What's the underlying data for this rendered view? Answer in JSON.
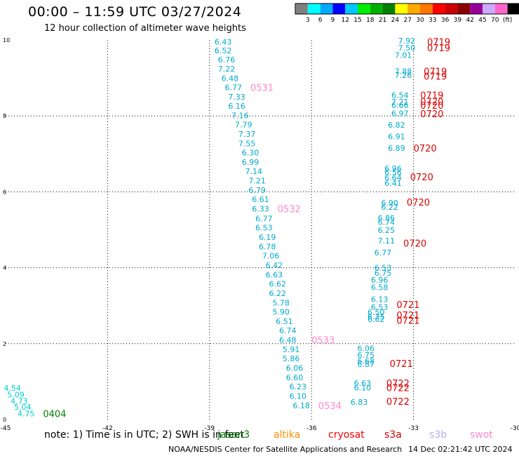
{
  "header": {
    "title": "00:00 – 11:59 UTC 03/27/2024",
    "subtitle": "12 hour collection of altimeter wave heights"
  },
  "colorbar": {
    "labels": [
      "3",
      "6",
      "9",
      "12",
      "15",
      "18",
      "21",
      "24",
      "27",
      "30",
      "33",
      "36",
      "39",
      "42",
      "45",
      "70",
      "(ft)"
    ],
    "colors": [
      "#808080",
      "#00ffff",
      "#00aaff",
      "#0000ff",
      "#00c8ff",
      "#00ee00",
      "#00b000",
      "#008000",
      "#ffff00",
      "#ffaa00",
      "#ff7700",
      "#ff0000",
      "#cc0000",
      "#8b0000",
      "#990099",
      "#ccaaff",
      "#ff66cc",
      "#000000"
    ]
  },
  "footer": {
    "note": "note:  1) Time is in UTC; 2) SWH is in feet",
    "satellites": [
      {
        "name": "jason3",
        "color": "#008000"
      },
      {
        "name": "altika",
        "color": "#ff8c00"
      },
      {
        "name": "cryosat",
        "color": "#ff0000"
      },
      {
        "name": "s3a",
        "color": "#cc0000"
      },
      {
        "name": "s3b",
        "color": "#bbaaee"
      },
      {
        "name": "swot",
        "color": "#ff88cc"
      }
    ],
    "credit": "NOAA/NESDIS Center for Satellite Applications and Research",
    "timestamp": "14 Dec 02:21:42 UTC 2024"
  },
  "chart_data": {
    "type": "scatter",
    "xlim": [
      -45,
      -30
    ],
    "ylim": [
      0,
      10
    ],
    "xticks": [
      "-45",
      "-42",
      "-39",
      "-36",
      "-33",
      "-30"
    ],
    "yticks": [
      "0",
      "2",
      "4",
      "6",
      "8",
      "10"
    ],
    "grid": true,
    "tracks": [
      {
        "color": "#00cccc",
        "points": [
          {
            "x": -44.8,
            "y": 0.83,
            "label": "4.54"
          },
          {
            "x": -44.7,
            "y": 0.66,
            "label": "5.09"
          },
          {
            "x": -44.6,
            "y": 0.49,
            "label": "4.73"
          },
          {
            "x": -44.5,
            "y": 0.33,
            "label": "5.04"
          },
          {
            "x": -44.4,
            "y": 0.16,
            "label": "4.75"
          }
        ]
      },
      {
        "color": "#00aacc",
        "points": [
          {
            "x": -38.6,
            "y": 9.95,
            "label": "6.43"
          },
          {
            "x": -38.6,
            "y": 9.72,
            "label": "6.52"
          },
          {
            "x": -38.5,
            "y": 9.48,
            "label": "6.76"
          },
          {
            "x": -38.5,
            "y": 9.24,
            "label": "7.22"
          },
          {
            "x": -38.4,
            "y": 8.99,
            "label": "6.48"
          },
          {
            "x": -38.3,
            "y": 8.75,
            "label": "6.77"
          },
          {
            "x": -38.2,
            "y": 8.5,
            "label": "7.33"
          },
          {
            "x": -38.2,
            "y": 8.26,
            "label": "6.16"
          },
          {
            "x": -38.1,
            "y": 8.01,
            "label": "7.16"
          },
          {
            "x": -38.0,
            "y": 7.77,
            "label": "7.79"
          },
          {
            "x": -37.9,
            "y": 7.52,
            "label": "7.37"
          },
          {
            "x": -37.9,
            "y": 7.27,
            "label": "7.55"
          },
          {
            "x": -37.8,
            "y": 7.03,
            "label": "6.30"
          },
          {
            "x": -37.8,
            "y": 6.78,
            "label": "6.99"
          },
          {
            "x": -37.7,
            "y": 6.54,
            "label": "7.14"
          },
          {
            "x": -37.6,
            "y": 6.29,
            "label": "7.21"
          },
          {
            "x": -37.6,
            "y": 6.04,
            "label": "6.79"
          },
          {
            "x": -37.5,
            "y": 5.8,
            "label": "6.61"
          },
          {
            "x": -37.5,
            "y": 5.55,
            "label": "6.33"
          },
          {
            "x": -37.4,
            "y": 5.3,
            "label": "6.77"
          },
          {
            "x": -37.4,
            "y": 5.06,
            "label": "6.53"
          },
          {
            "x": -37.3,
            "y": 4.81,
            "label": "6.19"
          },
          {
            "x": -37.3,
            "y": 4.56,
            "label": "6.78"
          },
          {
            "x": -37.2,
            "y": 4.32,
            "label": "7.06"
          },
          {
            "x": -37.1,
            "y": 4.07,
            "label": "6.42"
          },
          {
            "x": -37.1,
            "y": 3.82,
            "label": "6.63"
          },
          {
            "x": -37.0,
            "y": 3.58,
            "label": "6.62"
          },
          {
            "x": -37.0,
            "y": 3.33,
            "label": "6.22"
          },
          {
            "x": -36.9,
            "y": 3.08,
            "label": "5.78"
          },
          {
            "x": -36.9,
            "y": 2.84,
            "label": "5.90"
          },
          {
            "x": -36.8,
            "y": 2.59,
            "label": "6.51"
          },
          {
            "x": -36.7,
            "y": 2.35,
            "label": "6.74"
          },
          {
            "x": -36.7,
            "y": 2.1,
            "label": "6.48"
          },
          {
            "x": -36.6,
            "y": 1.85,
            "label": "5.91"
          },
          {
            "x": -36.6,
            "y": 1.61,
            "label": "5.86"
          },
          {
            "x": -36.5,
            "y": 1.36,
            "label": "6.06"
          },
          {
            "x": -36.5,
            "y": 1.11,
            "label": "6.60"
          },
          {
            "x": -36.4,
            "y": 0.87,
            "label": "6.23"
          },
          {
            "x": -36.4,
            "y": 0.62,
            "label": "6.10"
          },
          {
            "x": -36.3,
            "y": 0.37,
            "label": "6.18"
          }
        ]
      },
      {
        "color": "#00aacc",
        "points": [
          {
            "x": -33.2,
            "y": 9.98,
            "label": "7.92"
          },
          {
            "x": -33.2,
            "y": 9.8,
            "label": "7.50"
          },
          {
            "x": -33.3,
            "y": 9.6,
            "label": "7.01"
          },
          {
            "x": -33.3,
            "y": 9.18,
            "label": "7.88"
          },
          {
            "x": -33.3,
            "y": 9.08,
            "label": "7.26"
          },
          {
            "x": -33.4,
            "y": 8.55,
            "label": "6.54"
          },
          {
            "x": -33.4,
            "y": 8.37,
            "label": "7.21"
          },
          {
            "x": -33.4,
            "y": 8.28,
            "label": "6.66"
          },
          {
            "x": -33.4,
            "y": 8.07,
            "label": "6.97"
          },
          {
            "x": -33.5,
            "y": 7.76,
            "label": "6.82"
          },
          {
            "x": -33.5,
            "y": 7.46,
            "label": "6.91"
          },
          {
            "x": -33.5,
            "y": 7.15,
            "label": "6.89"
          },
          {
            "x": -33.6,
            "y": 6.62,
            "label": "6.96"
          },
          {
            "x": -33.6,
            "y": 6.52,
            "label": "6.56"
          },
          {
            "x": -33.6,
            "y": 6.38,
            "label": "6.64"
          },
          {
            "x": -33.6,
            "y": 6.23,
            "label": "6.41"
          },
          {
            "x": -33.7,
            "y": 5.71,
            "label": "6.90"
          },
          {
            "x": -33.7,
            "y": 5.6,
            "label": "6.22"
          },
          {
            "x": -33.8,
            "y": 5.31,
            "label": "6.86"
          },
          {
            "x": -33.8,
            "y": 5.2,
            "label": "6.74"
          },
          {
            "x": -33.8,
            "y": 4.99,
            "label": "6.25"
          },
          {
            "x": -33.8,
            "y": 4.71,
            "label": "7.11"
          },
          {
            "x": -33.9,
            "y": 4.4,
            "label": "6.77"
          },
          {
            "x": -33.9,
            "y": 4.0,
            "label": "6.53"
          },
          {
            "x": -33.9,
            "y": 3.86,
            "label": "6.75"
          },
          {
            "x": -34.0,
            "y": 3.68,
            "label": "6.96"
          },
          {
            "x": -34.0,
            "y": 3.48,
            "label": "6.58"
          },
          {
            "x": -34.0,
            "y": 3.17,
            "label": "6.13"
          },
          {
            "x": -34.0,
            "y": 2.97,
            "label": "6.53"
          },
          {
            "x": -34.1,
            "y": 2.83,
            "label": "6.50"
          },
          {
            "x": -34.1,
            "y": 2.72,
            "label": "6.35"
          },
          {
            "x": -34.1,
            "y": 2.64,
            "label": "6.62"
          },
          {
            "x": -34.4,
            "y": 1.88,
            "label": "6.06"
          },
          {
            "x": -34.4,
            "y": 1.7,
            "label": "6.75"
          },
          {
            "x": -34.4,
            "y": 1.54,
            "label": "6.68"
          },
          {
            "x": -34.4,
            "y": 1.46,
            "label": "6.87"
          },
          {
            "x": -34.5,
            "y": 0.96,
            "label": "6.63"
          },
          {
            "x": -34.5,
            "y": 0.84,
            "label": "6.10"
          },
          {
            "x": -34.6,
            "y": 0.46,
            "label": "6.83"
          }
        ]
      }
    ],
    "time_labels": [
      {
        "x": -32.6,
        "y": 9.95,
        "text": "0719",
        "color": "#dd0000"
      },
      {
        "x": -32.6,
        "y": 9.8,
        "text": "0719",
        "color": "#dd0000"
      },
      {
        "x": -32.7,
        "y": 9.18,
        "text": "0719",
        "color": "#dd0000"
      },
      {
        "x": -32.7,
        "y": 9.05,
        "text": "0719",
        "color": "#dd0000"
      },
      {
        "x": -32.8,
        "y": 8.55,
        "text": "0719",
        "color": "#dd0000"
      },
      {
        "x": -32.8,
        "y": 8.38,
        "text": "0720",
        "color": "#dd0000"
      },
      {
        "x": -32.8,
        "y": 8.28,
        "text": "0720",
        "color": "#dd0000"
      },
      {
        "x": -32.8,
        "y": 8.06,
        "text": "0720",
        "color": "#dd0000"
      },
      {
        "x": -33.0,
        "y": 7.15,
        "text": "0720",
        "color": "#dd0000"
      },
      {
        "x": -33.1,
        "y": 6.4,
        "text": "0720",
        "color": "#dd0000"
      },
      {
        "x": -33.2,
        "y": 5.73,
        "text": "0720",
        "color": "#dd0000"
      },
      {
        "x": -33.3,
        "y": 4.65,
        "text": "0720",
        "color": "#dd0000"
      },
      {
        "x": -33.5,
        "y": 3.03,
        "text": "0721",
        "color": "#dd0000"
      },
      {
        "x": -33.5,
        "y": 2.75,
        "text": "0721",
        "color": "#dd0000"
      },
      {
        "x": -33.5,
        "y": 2.62,
        "text": "0721",
        "color": "#dd0000"
      },
      {
        "x": -33.7,
        "y": 1.48,
        "text": "0721",
        "color": "#dd0000"
      },
      {
        "x": -33.8,
        "y": 0.96,
        "text": "0722",
        "color": "#dd0000"
      },
      {
        "x": -33.8,
        "y": 0.84,
        "text": "0722",
        "color": "#dd0000"
      },
      {
        "x": -33.8,
        "y": 0.48,
        "text": "0722",
        "color": "#dd0000"
      },
      {
        "x": -37.8,
        "y": 8.75,
        "text": "0531",
        "color": "#ff88cc"
      },
      {
        "x": -37.0,
        "y": 5.55,
        "text": "0532",
        "color": "#ff88cc"
      },
      {
        "x": -36.0,
        "y": 2.1,
        "text": "0533",
        "color": "#ff88cc"
      },
      {
        "x": -35.8,
        "y": 0.37,
        "text": "0534",
        "color": "#ff88cc"
      },
      {
        "x": -43.9,
        "y": 0.16,
        "text": "0404",
        "color": "#008000"
      }
    ]
  }
}
